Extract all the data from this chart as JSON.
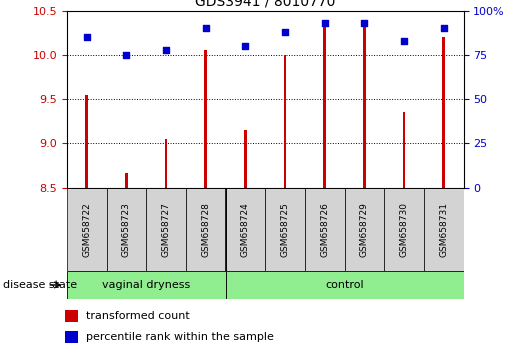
{
  "title": "GDS3941 / 8010770",
  "samples": [
    "GSM658722",
    "GSM658723",
    "GSM658727",
    "GSM658728",
    "GSM658724",
    "GSM658725",
    "GSM658726",
    "GSM658729",
    "GSM658730",
    "GSM658731"
  ],
  "transformed_count": [
    9.55,
    8.67,
    9.05,
    10.05,
    9.15,
    10.0,
    10.35,
    10.35,
    9.35,
    10.2
  ],
  "percentile_rank": [
    85,
    75,
    78,
    90,
    80,
    88,
    93,
    93,
    83,
    90
  ],
  "bar_color": "#cc0000",
  "dot_color": "#0000cc",
  "ylim_left": [
    8.5,
    10.5
  ],
  "ylim_right": [
    0,
    100
  ],
  "yticks_left": [
    8.5,
    9.0,
    9.5,
    10.0,
    10.5
  ],
  "yticks_right": [
    0,
    25,
    50,
    75,
    100
  ],
  "group_label": "disease state",
  "vd_samples": 4,
  "legend_bar_label": "transformed count",
  "legend_dot_label": "percentile rank within the sample",
  "tick_label_color_left": "#cc0000",
  "tick_label_color_right": "#0000cc",
  "label_box_color": "#d3d3d3",
  "group_color": "#90ee90",
  "bar_width": 0.07
}
